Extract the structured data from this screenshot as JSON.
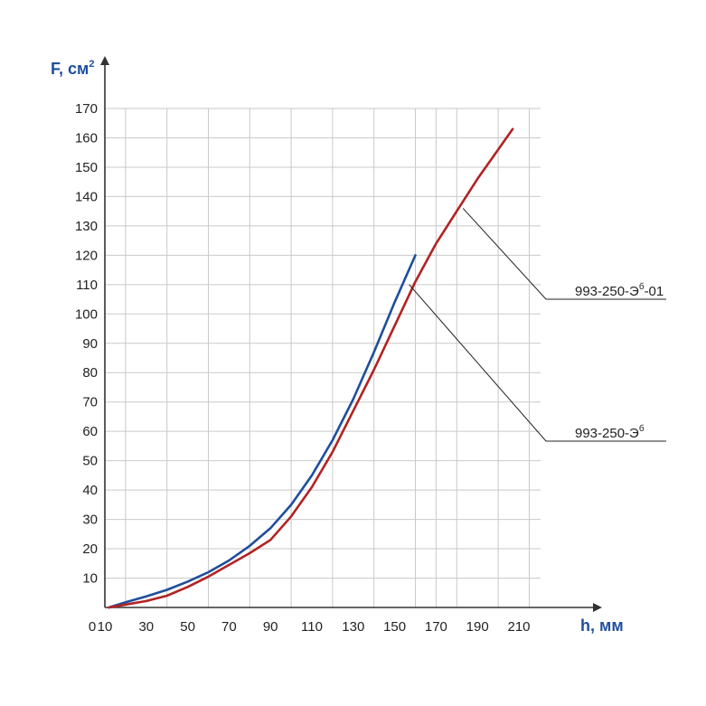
{
  "chart_data": {
    "type": "line",
    "ylabel": "F, см",
    "ylabel_sup": "2",
    "xlabel": "h, мм",
    "x_ticks": [
      "0",
      "10",
      "30",
      "50",
      "70",
      "90",
      "110",
      "130",
      "150",
      "170",
      "190",
      "210"
    ],
    "y_ticks": [
      "10",
      "20",
      "30",
      "40",
      "50",
      "60",
      "70",
      "80",
      "90",
      "100",
      "110",
      "120",
      "130",
      "140",
      "150",
      "160",
      "170"
    ],
    "xlim": [
      10,
      215
    ],
    "ylim": [
      0,
      170
    ],
    "grid": true,
    "series": [
      {
        "name": "993-250-Э6",
        "label_main": "993-250-Э",
        "label_sup": "б",
        "label_suffix": "",
        "color": "#1f4e9c",
        "x": [
          12,
          20,
          30,
          40,
          50,
          60,
          70,
          80,
          90,
          100,
          110,
          120,
          130,
          140,
          150,
          160
        ],
        "y": [
          0,
          1.8,
          3.8,
          6,
          8.8,
          12,
          16,
          21,
          27,
          35,
          45,
          57,
          71,
          87,
          104,
          120
        ]
      },
      {
        "name": "993-250-Э6-01",
        "label_main": "993-250-Э",
        "label_sup": "б",
        "label_suffix": "-01",
        "color": "#b22222",
        "x": [
          12,
          20,
          30,
          40,
          50,
          60,
          70,
          80,
          90,
          100,
          110,
          120,
          130,
          140,
          150,
          160,
          170,
          180,
          190,
          200,
          207
        ],
        "y": [
          0,
          1,
          2.2,
          4,
          7,
          10.5,
          14.5,
          18.5,
          23,
          31,
          41,
          53,
          67,
          81,
          96,
          111,
          124,
          135,
          146,
          156,
          163
        ]
      }
    ],
    "callouts": [
      {
        "series": 1,
        "point_x": 183,
        "point_y": 136
      },
      {
        "series": 0,
        "point_x": 157,
        "point_y": 110
      }
    ]
  }
}
